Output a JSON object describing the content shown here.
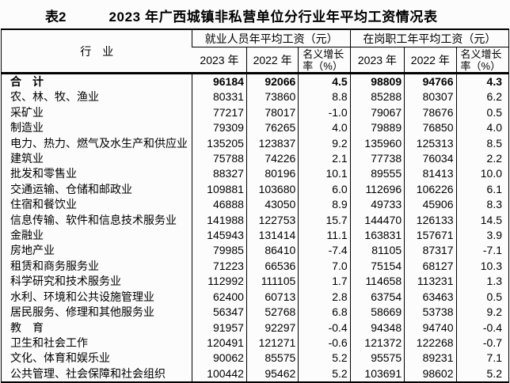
{
  "title": {
    "prefix": "表2",
    "text": "2023 年广西城镇非私营单位分行业年平均工资情况表"
  },
  "colors": {
    "text": "#000000",
    "border": "#000000",
    "background": "#fcfcfc"
  },
  "table": {
    "industry_header": "行　业",
    "groups": [
      {
        "title": "就业人员年平均工资（元）",
        "columns": [
          "2023 年",
          "2022 年",
          "名义增长率（%）"
        ]
      },
      {
        "title": "在岗职工年平均工资（元）",
        "columns": [
          "2023 年",
          "2022 年",
          "名义增长率（%）"
        ]
      }
    ],
    "rows": [
      {
        "industry": "合　计",
        "is_total": true,
        "values": [
          "96184",
          "92066",
          "4.5",
          "98809",
          "94766",
          "4.3"
        ]
      },
      {
        "industry": "农、林、牧、渔业",
        "is_total": false,
        "values": [
          "80331",
          "73860",
          "8.8",
          "85288",
          "80307",
          "6.2"
        ]
      },
      {
        "industry": "采矿业",
        "is_total": false,
        "values": [
          "77217",
          "78017",
          "-1.0",
          "79067",
          "78676",
          "0.5"
        ]
      },
      {
        "industry": "制造业",
        "is_total": false,
        "values": [
          "79309",
          "76265",
          "4.0",
          "79889",
          "76850",
          "4.0"
        ]
      },
      {
        "industry": "电力、热力、燃气及水生产和供应业",
        "is_total": false,
        "values": [
          "135205",
          "123837",
          "9.2",
          "135960",
          "125313",
          "8.5"
        ]
      },
      {
        "industry": "建筑业",
        "is_total": false,
        "values": [
          "75788",
          "74226",
          "2.1",
          "77738",
          "76034",
          "2.2"
        ]
      },
      {
        "industry": "批发和零售业",
        "is_total": false,
        "values": [
          "88327",
          "80196",
          "10.1",
          "89555",
          "81413",
          "10.0"
        ]
      },
      {
        "industry": "交通运输、仓储和邮政业",
        "is_total": false,
        "values": [
          "109881",
          "103680",
          "6.0",
          "112696",
          "106226",
          "6.1"
        ]
      },
      {
        "industry": "住宿和餐饮业",
        "is_total": false,
        "values": [
          "46888",
          "43050",
          "8.9",
          "49733",
          "45906",
          "8.3"
        ]
      },
      {
        "industry": "信息传输、软件和信息技术服务业",
        "is_total": false,
        "values": [
          "141988",
          "122753",
          "15.7",
          "144470",
          "126133",
          "14.5"
        ]
      },
      {
        "industry": "金融业",
        "is_total": false,
        "values": [
          "145943",
          "131414",
          "11.1",
          "163831",
          "157671",
          "3.9"
        ]
      },
      {
        "industry": "房地产业",
        "is_total": false,
        "values": [
          "79985",
          "86410",
          "-7.4",
          "81105",
          "87317",
          "-7.1"
        ]
      },
      {
        "industry": "租赁和商务服务业",
        "is_total": false,
        "values": [
          "71223",
          "66536",
          "7.0",
          "75154",
          "68127",
          "10.3"
        ]
      },
      {
        "industry": "科学研究和技术服务业",
        "is_total": false,
        "values": [
          "112992",
          "111105",
          "1.7",
          "114658",
          "113231",
          "1.3"
        ]
      },
      {
        "industry": "水利、环境和公共设施管理业",
        "is_total": false,
        "values": [
          "62400",
          "60713",
          "2.8",
          "63754",
          "63463",
          "0.5"
        ]
      },
      {
        "industry": "居民服务、修理和其他服务业",
        "is_total": false,
        "values": [
          "56347",
          "52768",
          "6.8",
          "58669",
          "53738",
          "9.2"
        ]
      },
      {
        "industry": "教　育",
        "is_total": false,
        "values": [
          "91957",
          "92297",
          "-0.4",
          "94348",
          "94740",
          "-0.4"
        ]
      },
      {
        "industry": "卫生和社会工作",
        "is_total": false,
        "values": [
          "120491",
          "121271",
          "-0.6",
          "121372",
          "122268",
          "-0.7"
        ]
      },
      {
        "industry": "文化、体育和娱乐业",
        "is_total": false,
        "values": [
          "90062",
          "85575",
          "5.2",
          "95575",
          "89231",
          "7.1"
        ]
      },
      {
        "industry": "公共管理、社会保障和社会组织",
        "is_total": false,
        "values": [
          "100442",
          "95462",
          "5.2",
          "103691",
          "98602",
          "5.2"
        ]
      }
    ]
  }
}
